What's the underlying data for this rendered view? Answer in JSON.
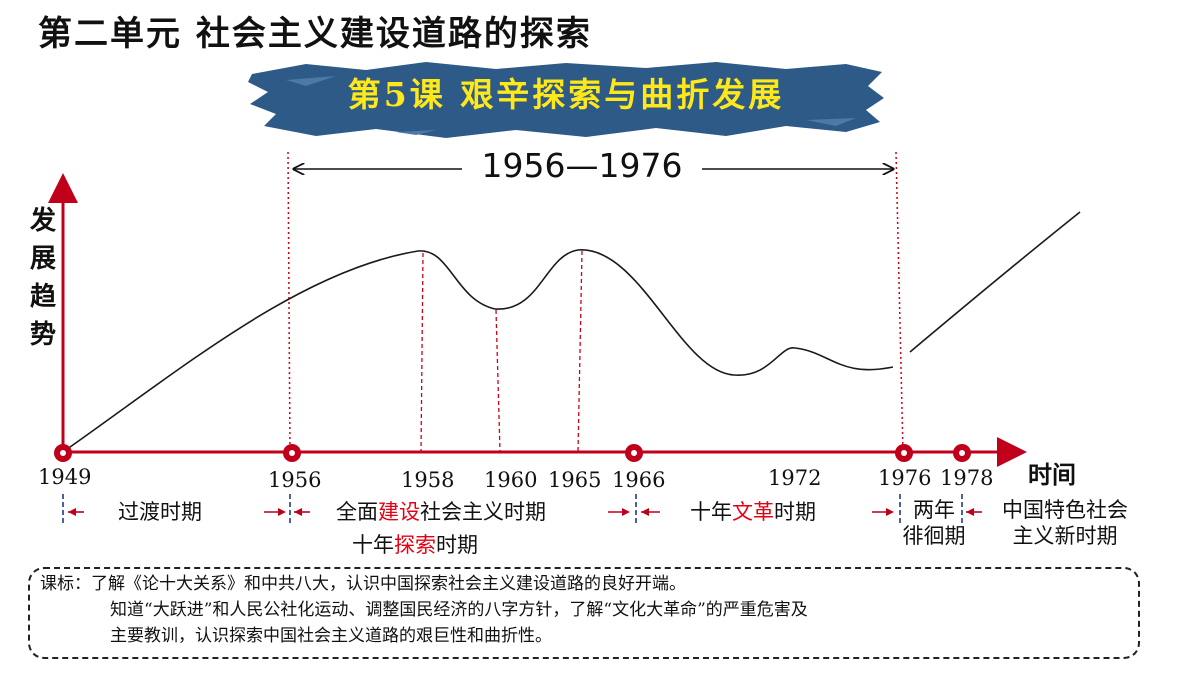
{
  "unit_title": "第二单元  社会主义建设道路的探索",
  "lesson_title": "第5课  艰辛探索与曲折发展",
  "span_label": "1956—1976",
  "y_axis_label": [
    "发",
    "展",
    "趋",
    "势"
  ],
  "x_axis_label": "时间",
  "years": [
    "1949",
    "1956",
    "1958",
    "1960",
    "1965",
    "1966",
    "1972",
    "1976",
    "1978"
  ],
  "periods": {
    "transition": "过渡时期",
    "construction": {
      "pre": "全面",
      "highlight": "建设",
      "post": "社会主义时期"
    },
    "exploration": {
      "pre": "十年",
      "highlight": "探索",
      "post": "时期"
    },
    "revolution": {
      "pre": "十年",
      "highlight": "文革",
      "post": "时期"
    },
    "hesitation": [
      "两年",
      "徘徊期"
    ],
    "new_era": [
      "中国特色社会",
      "主义新时期"
    ]
  },
  "curriculum": {
    "line1": "课标：了解《论十大关系》和中共八大，认识中国探索社会主义建设道路的良好开端。",
    "line2": "知道“大跃进”和人民公社化运动、调整国民经济的八字方针，了解“文化大革命”的严重危害及",
    "line3": "主要教训，认识探索中国社会主义道路的艰巨性和曲折性。"
  },
  "colors": {
    "axis": "#c0001a",
    "highlight": "#e60012",
    "banner": "#2d5a86",
    "lesson_title": "#ffe81a",
    "curve": "#1a1a1a"
  }
}
